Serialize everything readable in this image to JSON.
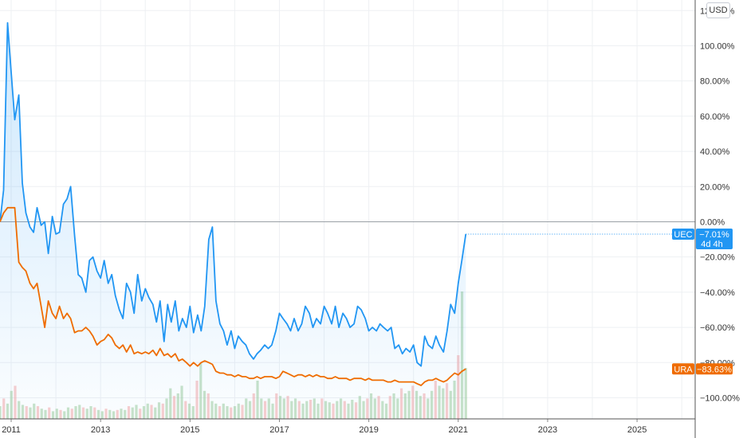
{
  "currency_button": "USD",
  "chart_data": {
    "type": "line",
    "y_unit": "percent change",
    "ylim": [
      -112,
      126
    ],
    "y_ticks": [
      "120.00%",
      "100.00%",
      "80.00%",
      "60.00%",
      "40.00%",
      "20.00%",
      "0.00%",
      "−20.00%",
      "−40.00%",
      "−60.00%",
      "−80.00%",
      "−100.00%"
    ],
    "y_tick_values": [
      120,
      100,
      80,
      60,
      40,
      20,
      0,
      -20,
      -40,
      -60,
      -80,
      -100
    ],
    "xlim": [
      2010.75,
      2026.3
    ],
    "x_ticks": [
      "2011",
      "2013",
      "2015",
      "2017",
      "2019",
      "2021",
      "2023",
      "2025"
    ],
    "x_tick_values": [
      2011,
      2013,
      2015,
      2017,
      2019,
      2021,
      2023,
      2025
    ],
    "grid": true,
    "baseline": 0,
    "series": [
      {
        "name": "UEC",
        "color": "#2196f3",
        "last_label": "−7.01%",
        "last_sublabel": "4d 4h",
        "last_value": -7.01,
        "points": [
          [
            2010.75,
            0
          ],
          [
            2010.83,
            18
          ],
          [
            2010.92,
            113
          ],
          [
            2011.0,
            85
          ],
          [
            2011.08,
            58
          ],
          [
            2011.17,
            72
          ],
          [
            2011.25,
            22
          ],
          [
            2011.33,
            5
          ],
          [
            2011.42,
            -3
          ],
          [
            2011.5,
            -6
          ],
          [
            2011.58,
            8
          ],
          [
            2011.67,
            -2
          ],
          [
            2011.75,
            0
          ],
          [
            2011.83,
            -18
          ],
          [
            2011.92,
            3
          ],
          [
            2012.0,
            -7
          ],
          [
            2012.08,
            -6
          ],
          [
            2012.17,
            10
          ],
          [
            2012.25,
            13
          ],
          [
            2012.33,
            20
          ],
          [
            2012.42,
            -8
          ],
          [
            2012.5,
            -30
          ],
          [
            2012.58,
            -32
          ],
          [
            2012.67,
            -40
          ],
          [
            2012.75,
            -22
          ],
          [
            2012.83,
            -20
          ],
          [
            2012.92,
            -28
          ],
          [
            2013.0,
            -32
          ],
          [
            2013.08,
            -22
          ],
          [
            2013.17,
            -35
          ],
          [
            2013.25,
            -30
          ],
          [
            2013.33,
            -42
          ],
          [
            2013.42,
            -50
          ],
          [
            2013.5,
            -55
          ],
          [
            2013.58,
            -35
          ],
          [
            2013.67,
            -40
          ],
          [
            2013.75,
            -52
          ],
          [
            2013.83,
            -30
          ],
          [
            2013.92,
            -45
          ],
          [
            2014.0,
            -38
          ],
          [
            2014.08,
            -43
          ],
          [
            2014.17,
            -47
          ],
          [
            2014.25,
            -57
          ],
          [
            2014.33,
            -45
          ],
          [
            2014.42,
            -68
          ],
          [
            2014.5,
            -47
          ],
          [
            2014.58,
            -57
          ],
          [
            2014.67,
            -45
          ],
          [
            2014.75,
            -62
          ],
          [
            2014.83,
            -55
          ],
          [
            2014.92,
            -60
          ],
          [
            2015.0,
            -48
          ],
          [
            2015.08,
            -63
          ],
          [
            2015.17,
            -53
          ],
          [
            2015.25,
            -62
          ],
          [
            2015.33,
            -48
          ],
          [
            2015.42,
            -10
          ],
          [
            2015.5,
            -3
          ],
          [
            2015.58,
            -45
          ],
          [
            2015.67,
            -58
          ],
          [
            2015.75,
            -62
          ],
          [
            2015.83,
            -70
          ],
          [
            2015.92,
            -62
          ],
          [
            2016.0,
            -72
          ],
          [
            2016.08,
            -65
          ],
          [
            2016.17,
            -68
          ],
          [
            2016.25,
            -70
          ],
          [
            2016.33,
            -75
          ],
          [
            2016.42,
            -78
          ],
          [
            2016.5,
            -75
          ],
          [
            2016.58,
            -73
          ],
          [
            2016.67,
            -70
          ],
          [
            2016.75,
            -72
          ],
          [
            2016.83,
            -70
          ],
          [
            2016.92,
            -62
          ],
          [
            2017.0,
            -52
          ],
          [
            2017.08,
            -55
          ],
          [
            2017.17,
            -58
          ],
          [
            2017.25,
            -62
          ],
          [
            2017.33,
            -55
          ],
          [
            2017.42,
            -62
          ],
          [
            2017.5,
            -58
          ],
          [
            2017.58,
            -48
          ],
          [
            2017.67,
            -52
          ],
          [
            2017.75,
            -60
          ],
          [
            2017.83,
            -55
          ],
          [
            2017.92,
            -58
          ],
          [
            2018.0,
            -48
          ],
          [
            2018.08,
            -52
          ],
          [
            2018.17,
            -58
          ],
          [
            2018.25,
            -48
          ],
          [
            2018.33,
            -60
          ],
          [
            2018.42,
            -52
          ],
          [
            2018.5,
            -55
          ],
          [
            2018.58,
            -60
          ],
          [
            2018.67,
            -58
          ],
          [
            2018.75,
            -48
          ],
          [
            2018.83,
            -50
          ],
          [
            2018.92,
            -55
          ],
          [
            2019.0,
            -62
          ],
          [
            2019.08,
            -60
          ],
          [
            2019.17,
            -62
          ],
          [
            2019.25,
            -58
          ],
          [
            2019.33,
            -60
          ],
          [
            2019.42,
            -62
          ],
          [
            2019.5,
            -60
          ],
          [
            2019.58,
            -72
          ],
          [
            2019.67,
            -70
          ],
          [
            2019.75,
            -75
          ],
          [
            2019.83,
            -72
          ],
          [
            2019.92,
            -74
          ],
          [
            2020.0,
            -70
          ],
          [
            2020.08,
            -80
          ],
          [
            2020.17,
            -82
          ],
          [
            2020.25,
            -65
          ],
          [
            2020.33,
            -70
          ],
          [
            2020.42,
            -72
          ],
          [
            2020.5,
            -65
          ],
          [
            2020.58,
            -70
          ],
          [
            2020.67,
            -74
          ],
          [
            2020.75,
            -62
          ],
          [
            2020.83,
            -47
          ],
          [
            2020.92,
            -52
          ],
          [
            2021.0,
            -35
          ],
          [
            2021.08,
            -22
          ],
          [
            2021.17,
            -7
          ]
        ]
      },
      {
        "name": "URA",
        "color": "#ef6c00",
        "last_label": "−83.63%",
        "last_value": -83.63,
        "points": [
          [
            2010.75,
            0
          ],
          [
            2010.83,
            5
          ],
          [
            2010.92,
            8
          ],
          [
            2011.0,
            8
          ],
          [
            2011.08,
            8
          ],
          [
            2011.17,
            -23
          ],
          [
            2011.25,
            -26
          ],
          [
            2011.33,
            -28
          ],
          [
            2011.42,
            -35
          ],
          [
            2011.5,
            -38
          ],
          [
            2011.58,
            -35
          ],
          [
            2011.67,
            -48
          ],
          [
            2011.75,
            -60
          ],
          [
            2011.83,
            -45
          ],
          [
            2011.92,
            -52
          ],
          [
            2012.0,
            -55
          ],
          [
            2012.08,
            -48
          ],
          [
            2012.17,
            -55
          ],
          [
            2012.25,
            -52
          ],
          [
            2012.33,
            -55
          ],
          [
            2012.42,
            -63
          ],
          [
            2012.5,
            -62
          ],
          [
            2012.58,
            -62
          ],
          [
            2012.67,
            -60
          ],
          [
            2012.75,
            -62
          ],
          [
            2012.83,
            -65
          ],
          [
            2012.92,
            -70
          ],
          [
            2013.0,
            -68
          ],
          [
            2013.08,
            -67
          ],
          [
            2013.17,
            -64
          ],
          [
            2013.25,
            -66
          ],
          [
            2013.33,
            -70
          ],
          [
            2013.42,
            -72
          ],
          [
            2013.5,
            -70
          ],
          [
            2013.58,
            -74
          ],
          [
            2013.67,
            -70
          ],
          [
            2013.75,
            -75
          ],
          [
            2013.83,
            -74
          ],
          [
            2013.92,
            -75
          ],
          [
            2014.0,
            -74
          ],
          [
            2014.08,
            -75
          ],
          [
            2014.17,
            -73
          ],
          [
            2014.25,
            -76
          ],
          [
            2014.33,
            -72
          ],
          [
            2014.42,
            -76
          ],
          [
            2014.5,
            -75
          ],
          [
            2014.58,
            -77
          ],
          [
            2014.67,
            -75
          ],
          [
            2014.75,
            -79
          ],
          [
            2014.83,
            -78
          ],
          [
            2014.92,
            -80
          ],
          [
            2015.0,
            -82
          ],
          [
            2015.08,
            -80
          ],
          [
            2015.17,
            -82
          ],
          [
            2015.25,
            -80
          ],
          [
            2015.33,
            -79
          ],
          [
            2015.42,
            -80
          ],
          [
            2015.5,
            -81
          ],
          [
            2015.58,
            -85
          ],
          [
            2015.67,
            -86
          ],
          [
            2015.75,
            -86
          ],
          [
            2015.83,
            -87
          ],
          [
            2015.92,
            -87
          ],
          [
            2016.0,
            -88
          ],
          [
            2016.08,
            -87
          ],
          [
            2016.17,
            -88
          ],
          [
            2016.25,
            -88
          ],
          [
            2016.33,
            -89
          ],
          [
            2016.42,
            -89
          ],
          [
            2016.5,
            -88
          ],
          [
            2016.58,
            -89
          ],
          [
            2016.67,
            -88
          ],
          [
            2016.75,
            -88
          ],
          [
            2016.83,
            -88
          ],
          [
            2016.92,
            -89
          ],
          [
            2017.0,
            -88
          ],
          [
            2017.08,
            -85
          ],
          [
            2017.17,
            -86
          ],
          [
            2017.25,
            -87
          ],
          [
            2017.33,
            -88
          ],
          [
            2017.42,
            -87
          ],
          [
            2017.5,
            -87
          ],
          [
            2017.58,
            -88
          ],
          [
            2017.67,
            -87
          ],
          [
            2017.75,
            -88
          ],
          [
            2017.83,
            -87
          ],
          [
            2017.92,
            -88
          ],
          [
            2018.0,
            -88
          ],
          [
            2018.08,
            -89
          ],
          [
            2018.17,
            -89
          ],
          [
            2018.25,
            -88
          ],
          [
            2018.33,
            -89
          ],
          [
            2018.42,
            -89
          ],
          [
            2018.5,
            -89
          ],
          [
            2018.58,
            -90
          ],
          [
            2018.67,
            -89
          ],
          [
            2018.75,
            -89
          ],
          [
            2018.83,
            -89
          ],
          [
            2018.92,
            -90
          ],
          [
            2019.0,
            -89
          ],
          [
            2019.08,
            -90
          ],
          [
            2019.17,
            -90
          ],
          [
            2019.25,
            -90
          ],
          [
            2019.33,
            -90
          ],
          [
            2019.42,
            -91
          ],
          [
            2019.5,
            -91
          ],
          [
            2019.58,
            -90
          ],
          [
            2019.67,
            -91
          ],
          [
            2019.75,
            -91
          ],
          [
            2019.83,
            -91
          ],
          [
            2019.92,
            -91
          ],
          [
            2020.0,
            -91
          ],
          [
            2020.08,
            -92
          ],
          [
            2020.17,
            -93
          ],
          [
            2020.25,
            -91
          ],
          [
            2020.33,
            -90
          ],
          [
            2020.42,
            -90
          ],
          [
            2020.5,
            -89
          ],
          [
            2020.58,
            -90
          ],
          [
            2020.67,
            -91
          ],
          [
            2020.75,
            -90
          ],
          [
            2020.83,
            -88
          ],
          [
            2020.92,
            -86
          ],
          [
            2021.0,
            -87
          ],
          [
            2021.08,
            -85
          ],
          [
            2021.17,
            -83.63
          ]
        ]
      }
    ],
    "volume": {
      "color": "#9ccc9c",
      "alt_color": "#f4a6a6",
      "relative_heights": [
        0.1,
        0.16,
        0.12,
        0.22,
        0.26,
        0.14,
        0.11,
        0.1,
        0.09,
        0.12,
        0.1,
        0.08,
        0.07,
        0.09,
        0.06,
        0.08,
        0.07,
        0.06,
        0.09,
        0.08,
        0.1,
        0.11,
        0.09,
        0.08,
        0.1,
        0.09,
        0.07,
        0.06,
        0.08,
        0.07,
        0.06,
        0.07,
        0.08,
        0.07,
        0.1,
        0.09,
        0.11,
        0.08,
        0.1,
        0.12,
        0.11,
        0.09,
        0.13,
        0.12,
        0.16,
        0.24,
        0.18,
        0.2,
        0.26,
        0.14,
        0.12,
        0.1,
        0.3,
        0.44,
        0.22,
        0.2,
        0.14,
        0.12,
        0.1,
        0.12,
        0.1,
        0.09,
        0.1,
        0.12,
        0.11,
        0.16,
        0.14,
        0.2,
        0.3,
        0.16,
        0.14,
        0.16,
        0.12,
        0.2,
        0.18,
        0.16,
        0.18,
        0.14,
        0.16,
        0.14,
        0.12,
        0.14,
        0.15,
        0.16,
        0.12,
        0.16,
        0.14,
        0.13,
        0.12,
        0.14,
        0.16,
        0.14,
        0.12,
        0.15,
        0.13,
        0.18,
        0.14,
        0.16,
        0.2,
        0.16,
        0.18,
        0.14,
        0.12,
        0.18,
        0.2,
        0.16,
        0.24,
        0.2,
        0.22,
        0.26,
        0.22,
        0.18,
        0.2,
        0.16,
        0.22,
        0.3,
        0.26,
        0.24,
        0.28,
        0.22,
        0.3,
        0.5,
        1.0,
        0.4
      ]
    }
  }
}
